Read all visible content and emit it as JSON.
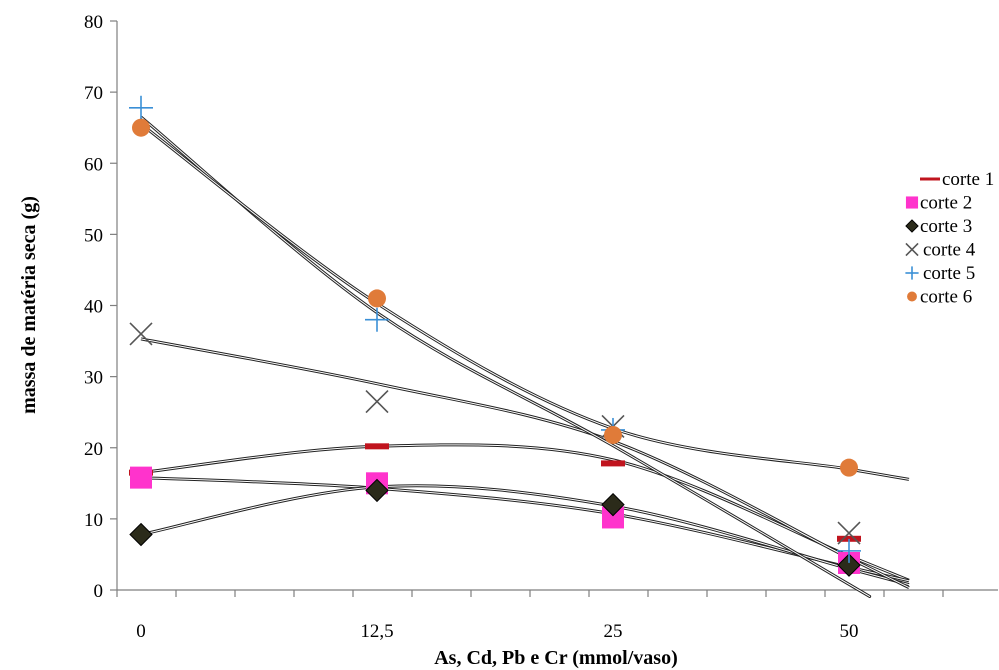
{
  "chart_data": {
    "type": "scatter",
    "title": "",
    "xlabel": "As, Cd, Pb e Cr (mmol/vaso)",
    "ylabel": "massa de matéria seca (g)",
    "categories": [
      "0",
      "12,5",
      "25",
      "50"
    ],
    "ylim": [
      0,
      80
    ],
    "yticks": [
      0,
      10,
      20,
      30,
      40,
      50,
      60,
      70,
      80
    ],
    "grid": false,
    "legend_position": "right",
    "series": [
      {
        "name": "corte 1",
        "marker": "dash",
        "color": "#c0141e",
        "values": [
          16.5,
          20.2,
          17.8,
          7.2
        ],
        "trend": [
          16.5,
          20.2,
          18.3,
          4.8
        ]
      },
      {
        "name": "corte 2",
        "marker": "square",
        "color": "#ff33cc",
        "values": [
          15.8,
          15.0,
          10.2,
          3.8
        ],
        "trend": [
          15.8,
          14.3,
          10.7,
          3.2
        ]
      },
      {
        "name": "corte 3",
        "marker": "diamond",
        "color": "#2b2b1a",
        "values": [
          7.8,
          14.0,
          12.0,
          3.5
        ],
        "trend": [
          7.8,
          14.5,
          11.8,
          3.0
        ]
      },
      {
        "name": "corte 4",
        "marker": "x",
        "color": "#555555",
        "values": [
          36.0,
          26.5,
          23.0,
          8.0
        ],
        "trend": [
          35.3,
          29.0,
          20.9,
          4.5
        ]
      },
      {
        "name": "corte 5",
        "marker": "plus",
        "color": "#3a8fd6",
        "values": [
          67.8,
          38.0,
          22.5,
          5.5
        ],
        "trend": [
          66.5,
          39.0,
          20.3,
          0.8
        ]
      },
      {
        "name": "corte 6",
        "marker": "circle",
        "color": "#e07b39",
        "values": [
          65.0,
          41.0,
          21.8,
          17.2
        ],
        "trend": [
          65.5,
          40.3,
          22.7,
          17.0
        ]
      }
    ]
  }
}
